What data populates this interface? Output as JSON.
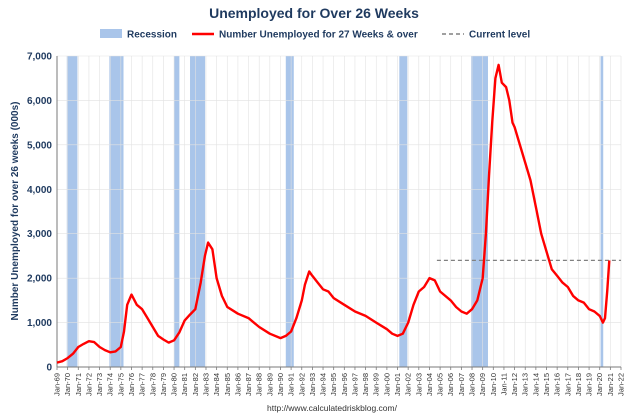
{
  "chart_data": {
    "type": "line",
    "title": "Unemployed for Over 26 Weeks",
    "ylabel": "Number Unemployed for over 26 weeks (000s)",
    "xlabel": "",
    "ylim": [
      0,
      7000
    ],
    "yticks": [
      0,
      1000,
      2000,
      3000,
      4000,
      5000,
      6000,
      7000
    ],
    "ytick_labels": [
      "0",
      "1,000",
      "2,000",
      "3,000",
      "4,000",
      "5,000",
      "6,000",
      "7,000"
    ],
    "xlim": [
      1969,
      2022
    ],
    "xtick_labels": [
      "Jan-69",
      "Jan-70",
      "Jan-71",
      "Jan-72",
      "Jan-73",
      "Jan-74",
      "Jan-75",
      "Jan-76",
      "Jan-77",
      "Jan-78",
      "Jan-79",
      "Jan-80",
      "Jan-81",
      "Jan-82",
      "Jan-83",
      "Jan-84",
      "Jan-85",
      "Jan-86",
      "Jan-87",
      "Jan-88",
      "Jan-89",
      "Jan-90",
      "Jan-91",
      "Jan-92",
      "Jan-93",
      "Jan-94",
      "Jan-95",
      "Jan-96",
      "Jan-97",
      "Jan-98",
      "Jan-99",
      "Jan-00",
      "Jan-01",
      "Jan-02",
      "Jan-03",
      "Jan-04",
      "Jan-05",
      "Jan-06",
      "Jan-07",
      "Jan-08",
      "Jan-09",
      "Jan-10",
      "Jan-11",
      "Jan-12",
      "Jan-13",
      "Jan-14",
      "Jan-15",
      "Jan-16",
      "Jan-17",
      "Jan-18",
      "Jan-19",
      "Jan-20",
      "Jan-21",
      "Jan-22"
    ],
    "grid": true,
    "legend": {
      "placement": "top",
      "items": [
        {
          "label": "Recession",
          "type": "band",
          "color": "#a9c5ea"
        },
        {
          "label": "Number Unemployed for 27 Weeks & over",
          "type": "line",
          "color": "#ff0000"
        },
        {
          "label": "Current level",
          "type": "dashed",
          "color": "#808080"
        }
      ]
    },
    "recessions": [
      {
        "start": 1969.92,
        "end": 1970.92
      },
      {
        "start": 1973.92,
        "end": 1975.25
      },
      {
        "start": 1980.0,
        "end": 1980.5
      },
      {
        "start": 1981.5,
        "end": 1982.92
      },
      {
        "start": 1990.5,
        "end": 1991.25
      },
      {
        "start": 2001.17,
        "end": 2001.92
      },
      {
        "start": 2007.92,
        "end": 2009.5
      },
      {
        "start": 2020.08,
        "end": 2020.33
      }
    ],
    "series": [
      {
        "name": "Number Unemployed for 27 Weeks & over",
        "color": "#ff0000",
        "x": [
          1969.0,
          1969.5,
          1970.0,
          1970.5,
          1971.0,
          1971.5,
          1972.0,
          1972.5,
          1973.0,
          1973.5,
          1974.0,
          1974.5,
          1975.0,
          1975.3,
          1975.6,
          1976.0,
          1976.5,
          1977.0,
          1977.5,
          1978.0,
          1978.5,
          1979.0,
          1979.5,
          1980.0,
          1980.5,
          1981.0,
          1981.5,
          1982.0,
          1982.5,
          1982.9,
          1983.2,
          1983.6,
          1984.0,
          1984.5,
          1985.0,
          1986.0,
          1987.0,
          1988.0,
          1989.0,
          1990.0,
          1990.5,
          1991.0,
          1991.5,
          1992.0,
          1992.3,
          1992.7,
          1993.0,
          1993.5,
          1994.0,
          1994.5,
          1995.0,
          1996.0,
          1997.0,
          1998.0,
          1999.0,
          2000.0,
          2000.5,
          2001.0,
          2001.5,
          2002.0,
          2002.5,
          2003.0,
          2003.5,
          2004.0,
          2004.5,
          2005.0,
          2006.0,
          2006.5,
          2007.0,
          2007.5,
          2008.0,
          2008.5,
          2009.0,
          2009.3,
          2009.6,
          2009.9,
          2010.2,
          2010.5,
          2010.8,
          2011.2,
          2011.5,
          2011.8,
          2012.0,
          2012.5,
          2013.0,
          2013.5,
          2014.0,
          2014.5,
          2015.0,
          2015.5,
          2016.0,
          2016.5,
          2017.0,
          2017.5,
          2018.0,
          2018.5,
          2019.0,
          2019.5,
          2020.0,
          2020.1,
          2020.3,
          2020.5,
          2020.7,
          2020.9
        ],
        "y": [
          100,
          130,
          200,
          300,
          450,
          520,
          580,
          560,
          450,
          380,
          330,
          350,
          450,
          800,
          1400,
          1630,
          1400,
          1300,
          1100,
          900,
          700,
          620,
          550,
          600,
          780,
          1050,
          1180,
          1300,
          1900,
          2500,
          2800,
          2650,
          2000,
          1600,
          1350,
          1200,
          1100,
          900,
          750,
          650,
          700,
          800,
          1100,
          1500,
          1850,
          2150,
          2050,
          1900,
          1750,
          1700,
          1550,
          1400,
          1250,
          1150,
          1000,
          850,
          750,
          700,
          750,
          1000,
          1400,
          1700,
          1800,
          2000,
          1950,
          1700,
          1500,
          1350,
          1250,
          1200,
          1300,
          1500,
          2000,
          3000,
          4300,
          5500,
          6500,
          6800,
          6400,
          6300,
          6000,
          5500,
          5400,
          5000,
          4600,
          4200,
          3600,
          3000,
          2600,
          2200,
          2050,
          1900,
          1800,
          1600,
          1500,
          1450,
          1300,
          1250,
          1150,
          1100,
          1000,
          1100,
          1700,
          2400
        ]
      }
    ],
    "current_level": {
      "label": "Current level",
      "y": 2400,
      "x_start": 2004.7,
      "x_end": 2022
    },
    "footer": "http://www.calculatedriskblog.com/"
  }
}
